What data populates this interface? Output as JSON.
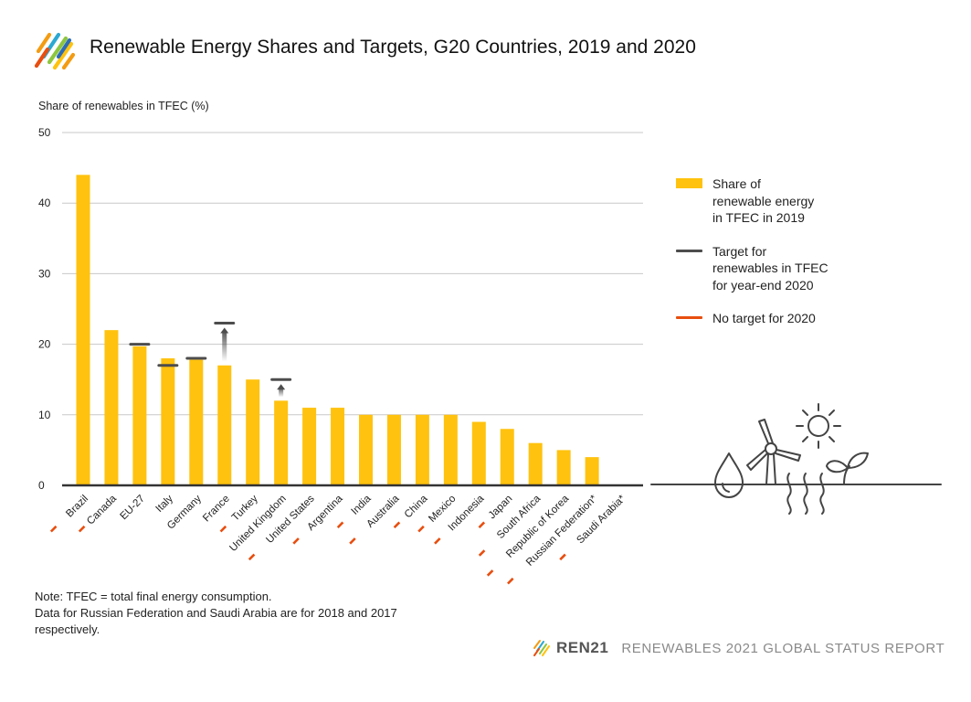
{
  "header": {
    "title": "Renewable Energy Shares and Targets, G20 Countries, 2019 and 2020"
  },
  "chart_data": {
    "type": "bar",
    "ylabel": "Share of renewables in TFEC (%)",
    "ylim": [
      0,
      50
    ],
    "yticks": [
      "0",
      "10",
      "20",
      "30",
      "40",
      "50"
    ],
    "grid": true,
    "legend_position": "right",
    "categories": [
      "Brazil",
      "Canada",
      "EU-27",
      "Italy",
      "Germany",
      "France",
      "Turkey",
      "United Kingdom",
      "United States",
      "Argentina",
      "India",
      "Australia",
      "China",
      "Mexico",
      "Indonesia",
      "Japan",
      "South Africa",
      "Republic of Korea",
      "Russian Federation*",
      "Saudi Arabia*"
    ],
    "series": [
      {
        "name": "Share of renewable energy in TFEC in 2019",
        "values": [
          44,
          22,
          19.7,
          18,
          17.8,
          17,
          15,
          12,
          11,
          11,
          10,
          10,
          10,
          10,
          9,
          8,
          6,
          5,
          4,
          0
        ]
      },
      {
        "name": "Target for renewables in TFEC for year-end 2020",
        "values": [
          null,
          null,
          20,
          17,
          18,
          23,
          null,
          15,
          null,
          null,
          null,
          null,
          null,
          null,
          null,
          null,
          null,
          null,
          null,
          null
        ]
      }
    ],
    "no_target_2020": [
      true,
      true,
      false,
      false,
      false,
      false,
      true,
      false,
      true,
      true,
      true,
      true,
      true,
      true,
      true,
      true,
      true,
      true,
      true,
      true
    ],
    "colors": {
      "bar": "#FFC20E",
      "target": "#4D4D4D",
      "no_target": "#E84E0F",
      "grid": "#C8C8C8",
      "axis": "#333333"
    }
  },
  "legend": {
    "items": [
      {
        "label": "Share of\nrenewable energy\nin TFEC in 2019"
      },
      {
        "label": "Target for\nrenewables in TFEC\nfor year-end 2020"
      },
      {
        "label": "No target for 2020"
      }
    ]
  },
  "note": {
    "line1": "Note: TFEC = total final energy consumption.",
    "line2": "Data for Russian Federation and Saudi Arabia are for 2018 and 2017 respectively."
  },
  "footer": {
    "brand": "REN21",
    "report": "RENEWABLES 2021 GLOBAL STATUS REPORT"
  },
  "icons": [
    "ren21-logo-icon",
    "water-drop-icon",
    "wind-turbine-icon",
    "sun-icon",
    "heat-waves-icon",
    "leaf-sprout-icon"
  ]
}
